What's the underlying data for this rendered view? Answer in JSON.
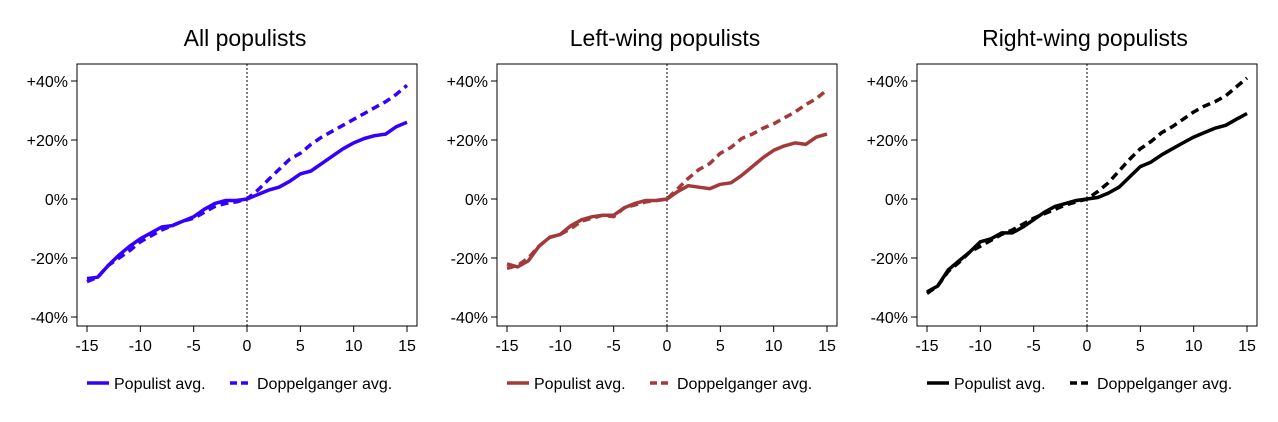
{
  "chart_data": [
    {
      "type": "line",
      "title": "All populists",
      "xlim": [
        -15,
        15
      ],
      "ylim": [
        -40,
        40
      ],
      "x_ticks": [
        -15,
        -10,
        -5,
        0,
        5,
        10,
        15
      ],
      "x_tick_labels": [
        "-15",
        "-10",
        "-5",
        "0",
        "5",
        "10",
        "15"
      ],
      "y_ticks": [
        40,
        20,
        0,
        -20,
        -40
      ],
      "y_tick_labels": [
        "+40%",
        "+20%",
        "0%",
        "-20%",
        "-40%"
      ],
      "reference_line_x": 0,
      "legend_position": "bottom",
      "x": [
        -15,
        -14,
        -13,
        -12,
        -11,
        -10,
        -9,
        -8,
        -7,
        -6,
        -5,
        -4,
        -3,
        -2,
        -1,
        0,
        1,
        2,
        3,
        4,
        5,
        6,
        7,
        8,
        9,
        10,
        11,
        12,
        13,
        14,
        15
      ],
      "series": [
        {
          "name": "Populist avg.",
          "color": "#3300ff",
          "dash": "solid",
          "values": [
            -27,
            -26.5,
            -22.5,
            -19,
            -16,
            -13.5,
            -11.5,
            -9.5,
            -9,
            -7.5,
            -6,
            -3.5,
            -1.5,
            -0.5,
            -0.5,
            0,
            1.5,
            3,
            4,
            6,
            8.5,
            9.5,
            12,
            14.5,
            17,
            19,
            20.5,
            21.5,
            22,
            24.5,
            26
          ]
        },
        {
          "name": "Doppelganger avg.",
          "color": "#3300ff",
          "dash": "dashed",
          "values": [
            -28,
            -26.5,
            -22.5,
            -20,
            -17.5,
            -14.5,
            -12.5,
            -10.5,
            -9,
            -7.5,
            -6.5,
            -4.5,
            -2.5,
            -1.5,
            -1,
            0,
            3,
            6.5,
            10,
            13.5,
            15.5,
            18.5,
            21,
            23,
            25,
            27,
            29,
            31,
            33,
            35.5,
            38.5
          ]
        }
      ]
    },
    {
      "type": "line",
      "title": "Left-wing populists",
      "xlim": [
        -15,
        15
      ],
      "ylim": [
        -40,
        40
      ],
      "x_ticks": [
        -15,
        -10,
        -5,
        0,
        5,
        10,
        15
      ],
      "x_tick_labels": [
        "-15",
        "-10",
        "-5",
        "0",
        "5",
        "10",
        "15"
      ],
      "y_ticks": [
        40,
        20,
        0,
        -20,
        -40
      ],
      "y_tick_labels": [
        "+40%",
        "+20%",
        "0%",
        "-20%",
        "-40%"
      ],
      "reference_line_x": 0,
      "legend_position": "bottom",
      "x": [
        -15,
        -14,
        -13,
        -12,
        -11,
        -10,
        -9,
        -8,
        -7,
        -6,
        -5,
        -4,
        -3,
        -2,
        -1,
        0,
        1,
        2,
        3,
        4,
        5,
        6,
        7,
        8,
        9,
        10,
        11,
        12,
        13,
        14,
        15
      ],
      "series": [
        {
          "name": "Populist avg.",
          "color": "#a33a3a",
          "dash": "solid",
          "values": [
            -22,
            -23,
            -21,
            -16,
            -13,
            -12,
            -9,
            -7,
            -6,
            -5.5,
            -5.5,
            -3,
            -1.5,
            -0.5,
            -0.5,
            0,
            2.5,
            4.5,
            4,
            3.5,
            5,
            5.5,
            8,
            11,
            14,
            16.5,
            18,
            19,
            18.5,
            21,
            22
          ]
        },
        {
          "name": "Doppelganger avg.",
          "color": "#a33a3a",
          "dash": "dashed",
          "values": [
            -23.5,
            -22.5,
            -20,
            -16,
            -13,
            -12,
            -10,
            -7.5,
            -6.5,
            -5.5,
            -6,
            -3,
            -2,
            -1,
            -0.5,
            0,
            3.5,
            7,
            10,
            12,
            15.5,
            17.5,
            20.5,
            22,
            24,
            25.5,
            27.5,
            29.5,
            32,
            34,
            37
          ]
        }
      ]
    },
    {
      "type": "line",
      "title": "Right-wing populists",
      "xlim": [
        -15,
        15
      ],
      "ylim": [
        -40,
        40
      ],
      "x_ticks": [
        -15,
        -10,
        -5,
        0,
        5,
        10,
        15
      ],
      "x_tick_labels": [
        "-15",
        "-10",
        "-5",
        "0",
        "5",
        "10",
        "15"
      ],
      "y_ticks": [
        40,
        20,
        0,
        -20,
        -40
      ],
      "y_tick_labels": [
        "+40%",
        "+20%",
        "0%",
        "-20%",
        "-40%"
      ],
      "reference_line_x": 0,
      "legend_position": "bottom",
      "x": [
        -15,
        -14,
        -13,
        -12,
        -11,
        -10,
        -9,
        -8,
        -7,
        -6,
        -5,
        -4,
        -3,
        -2,
        -1,
        0,
        1,
        2,
        3,
        4,
        5,
        6,
        7,
        8,
        9,
        10,
        11,
        12,
        13,
        14,
        15
      ],
      "series": [
        {
          "name": "Populist avg.",
          "color": "#000000",
          "dash": "solid",
          "values": [
            -31.5,
            -29.5,
            -24,
            -21,
            -18,
            -14.5,
            -13.5,
            -11.5,
            -11.5,
            -9.5,
            -7,
            -4.5,
            -2.5,
            -1.5,
            -0.5,
            0,
            0.5,
            2,
            4,
            7.5,
            11,
            12.5,
            15,
            17,
            19,
            21,
            22.5,
            24,
            25,
            27,
            29
          ]
        },
        {
          "name": "Doppelganger avg.",
          "color": "#000000",
          "dash": "dashed",
          "values": [
            -32,
            -29.5,
            -24.5,
            -21.5,
            -18,
            -16,
            -14,
            -12,
            -10.5,
            -8.5,
            -6.5,
            -5,
            -3.5,
            -2,
            -1,
            0,
            2.5,
            5.5,
            9.5,
            13.5,
            17,
            19.5,
            22.5,
            24.5,
            27,
            29.5,
            31.5,
            33,
            35,
            38,
            41
          ]
        }
      ]
    }
  ]
}
